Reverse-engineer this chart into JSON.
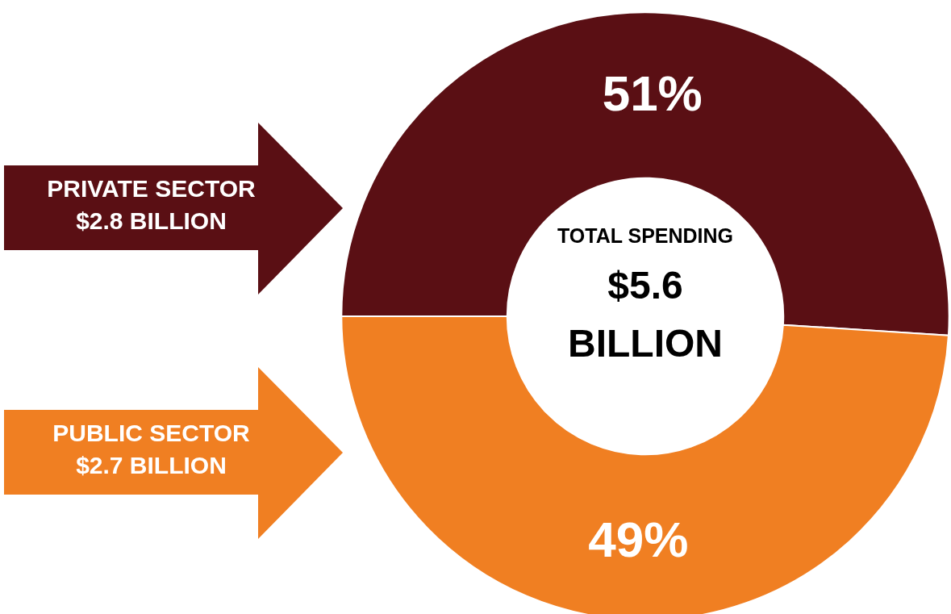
{
  "chart_data": {
    "type": "donut",
    "title": "TOTAL SPENDING",
    "subtitle": "$5.6 BILLION",
    "categories": [
      "PRIVATE SECTOR",
      "PUBLIC SECTOR"
    ],
    "values": [
      51,
      49
    ],
    "value_labels": [
      "51%",
      "49%"
    ],
    "colors": [
      "#5a0f14",
      "#f07f22"
    ],
    "annotations": [
      "$2.8 BILLION",
      "$2.7 BILLION"
    ]
  }
}
